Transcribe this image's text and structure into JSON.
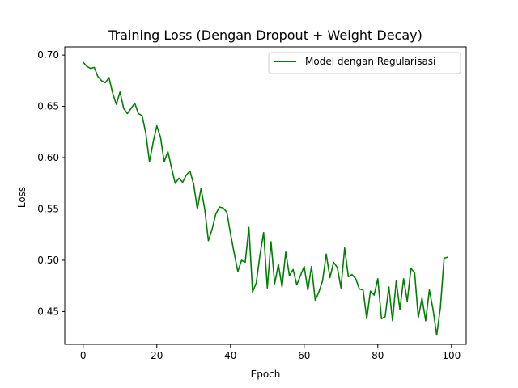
{
  "chart_data": {
    "type": "line",
    "title": "Training Loss (Dengan Dropout + Weight Decay)",
    "xlabel": "Epoch",
    "ylabel": "Loss",
    "xlim": [
      -5,
      104
    ],
    "ylim": [
      0.418,
      0.708
    ],
    "xticks": [
      0,
      20,
      40,
      60,
      80,
      100
    ],
    "yticks": [
      0.45,
      0.5,
      0.55,
      0.6,
      0.65,
      0.7
    ],
    "ytick_labels": [
      "0.45",
      "0.50",
      "0.55",
      "0.60",
      "0.65",
      "0.70"
    ],
    "grid": false,
    "legend": {
      "position": "top-right"
    },
    "series": [
      {
        "name": "Model dengan Regularisasi",
        "color": "#008000",
        "x": [
          0,
          1,
          2,
          3,
          4,
          5,
          6,
          7,
          8,
          9,
          10,
          11,
          12,
          13,
          14,
          15,
          16,
          17,
          18,
          19,
          20,
          21,
          22,
          23,
          24,
          25,
          26,
          27,
          28,
          29,
          30,
          31,
          32,
          33,
          34,
          35,
          36,
          37,
          38,
          39,
          40,
          41,
          42,
          43,
          44,
          45,
          46,
          47,
          48,
          49,
          50,
          51,
          52,
          53,
          54,
          55,
          56,
          57,
          58,
          59,
          60,
          61,
          62,
          63,
          64,
          65,
          66,
          67,
          68,
          69,
          70,
          71,
          72,
          73,
          74,
          75,
          76,
          77,
          78,
          79,
          80,
          81,
          82,
          83,
          84,
          85,
          86,
          87,
          88,
          89,
          90,
          91,
          92,
          93,
          94,
          95,
          96,
          97,
          98,
          99
        ],
        "y": [
          0.693,
          0.689,
          0.687,
          0.688,
          0.679,
          0.675,
          0.673,
          0.678,
          0.663,
          0.652,
          0.664,
          0.648,
          0.643,
          0.648,
          0.653,
          0.643,
          0.641,
          0.624,
          0.596,
          0.615,
          0.631,
          0.62,
          0.596,
          0.606,
          0.59,
          0.575,
          0.58,
          0.576,
          0.583,
          0.587,
          0.574,
          0.55,
          0.57,
          0.55,
          0.519,
          0.53,
          0.545,
          0.552,
          0.551,
          0.547,
          0.526,
          0.507,
          0.489,
          0.5,
          0.498,
          0.532,
          0.469,
          0.478,
          0.505,
          0.527,
          0.473,
          0.518,
          0.477,
          0.496,
          0.474,
          0.508,
          0.485,
          0.491,
          0.476,
          0.485,
          0.494,
          0.471,
          0.494,
          0.461,
          0.469,
          0.48,
          0.506,
          0.483,
          0.498,
          0.493,
          0.473,
          0.512,
          0.484,
          0.486,
          0.482,
          0.472,
          0.471,
          0.443,
          0.47,
          0.466,
          0.482,
          0.443,
          0.445,
          0.474,
          0.441,
          0.48,
          0.452,
          0.482,
          0.46,
          0.492,
          0.488,
          0.444,
          0.463,
          0.441,
          0.471,
          0.452,
          0.427,
          0.454,
          0.502,
          0.503
        ]
      }
    ]
  }
}
